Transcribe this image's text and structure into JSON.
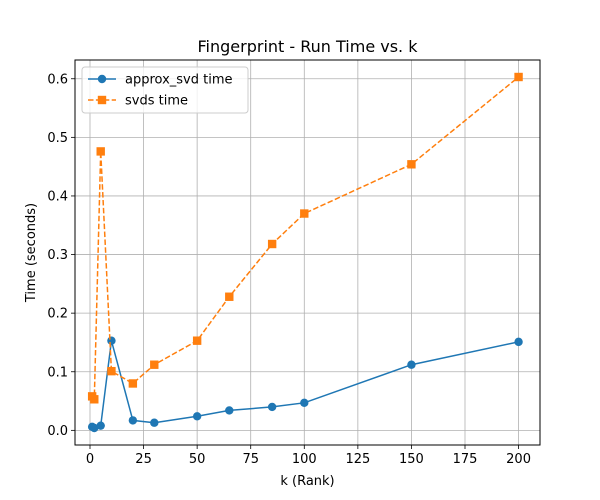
{
  "chart_data": {
    "type": "line",
    "title": "Fingerprint - Run Time vs. k",
    "xlabel": "k (Rank)",
    "ylabel": "Time (seconds)",
    "xlim": [
      -7,
      210
    ],
    "ylim": [
      -0.025,
      0.632
    ],
    "x_ticks": [
      0,
      25,
      50,
      75,
      100,
      125,
      150,
      175,
      200
    ],
    "y_ticks": [
      0.0,
      0.1,
      0.2,
      0.3,
      0.4,
      0.5,
      0.6
    ],
    "y_tick_labels": [
      "0.0",
      "0.1",
      "0.2",
      "0.3",
      "0.4",
      "0.5",
      "0.6"
    ],
    "grid": true,
    "legend_position": "upper-left",
    "series": [
      {
        "name": "approx_svd time",
        "color": "#1f77b4",
        "marker": "circle",
        "line_style": "solid",
        "x": [
          1,
          2,
          5,
          10,
          20,
          30,
          50,
          65,
          85,
          100,
          150,
          200
        ],
        "y": [
          0.006,
          0.004,
          0.008,
          0.153,
          0.017,
          0.013,
          0.024,
          0.034,
          0.04,
          0.047,
          0.112,
          0.151
        ]
      },
      {
        "name": "svds time",
        "color": "#ff7f0e",
        "marker": "square",
        "line_style": "dashed",
        "x": [
          1,
          2,
          5,
          10,
          20,
          30,
          50,
          65,
          85,
          100,
          150,
          200
        ],
        "y": [
          0.058,
          0.053,
          0.476,
          0.101,
          0.08,
          0.112,
          0.153,
          0.228,
          0.318,
          0.37,
          0.454,
          0.603
        ]
      }
    ]
  }
}
